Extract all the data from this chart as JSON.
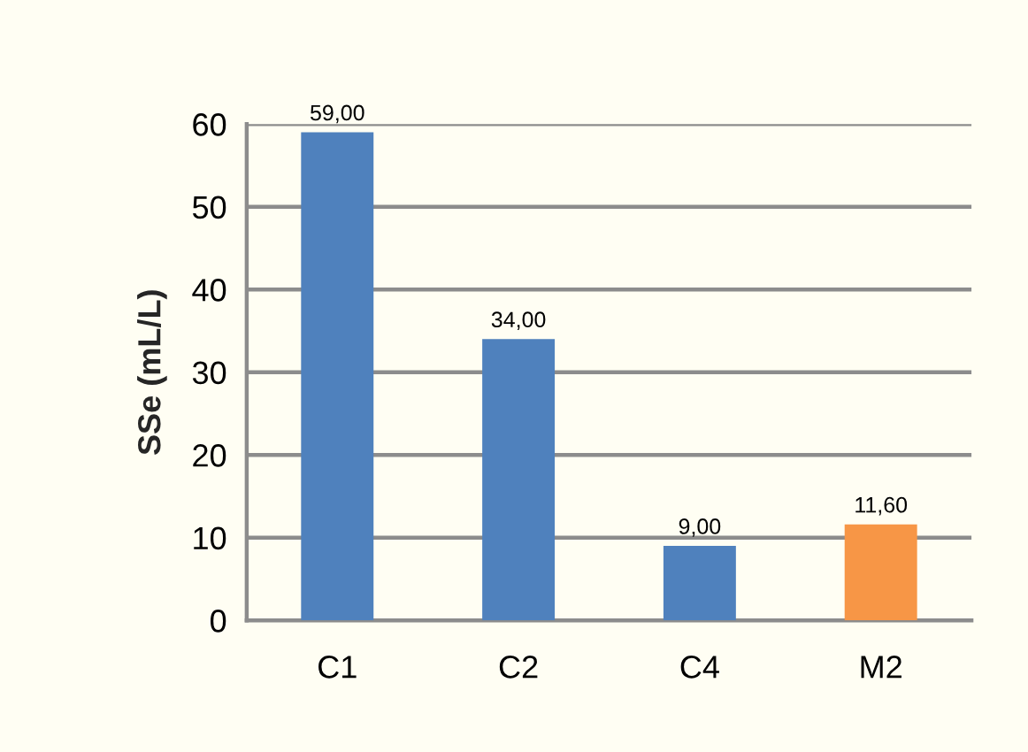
{
  "chart_data": {
    "type": "bar",
    "ylabel": "SSe (mL/L)",
    "categories": [
      "C1",
      "C2",
      "C4",
      "M2"
    ],
    "values": [
      59,
      34,
      9,
      11.6
    ],
    "colors": [
      "#4f81bd",
      "#4f81bd",
      "#4f81bd",
      "#f79646"
    ],
    "value_labels": [
      "59,00",
      "34,00",
      "9,00",
      "11,60"
    ],
    "ylim": [
      0,
      60
    ],
    "yticks": [
      0,
      10,
      20,
      30,
      40,
      50,
      60
    ],
    "grid": "y"
  }
}
